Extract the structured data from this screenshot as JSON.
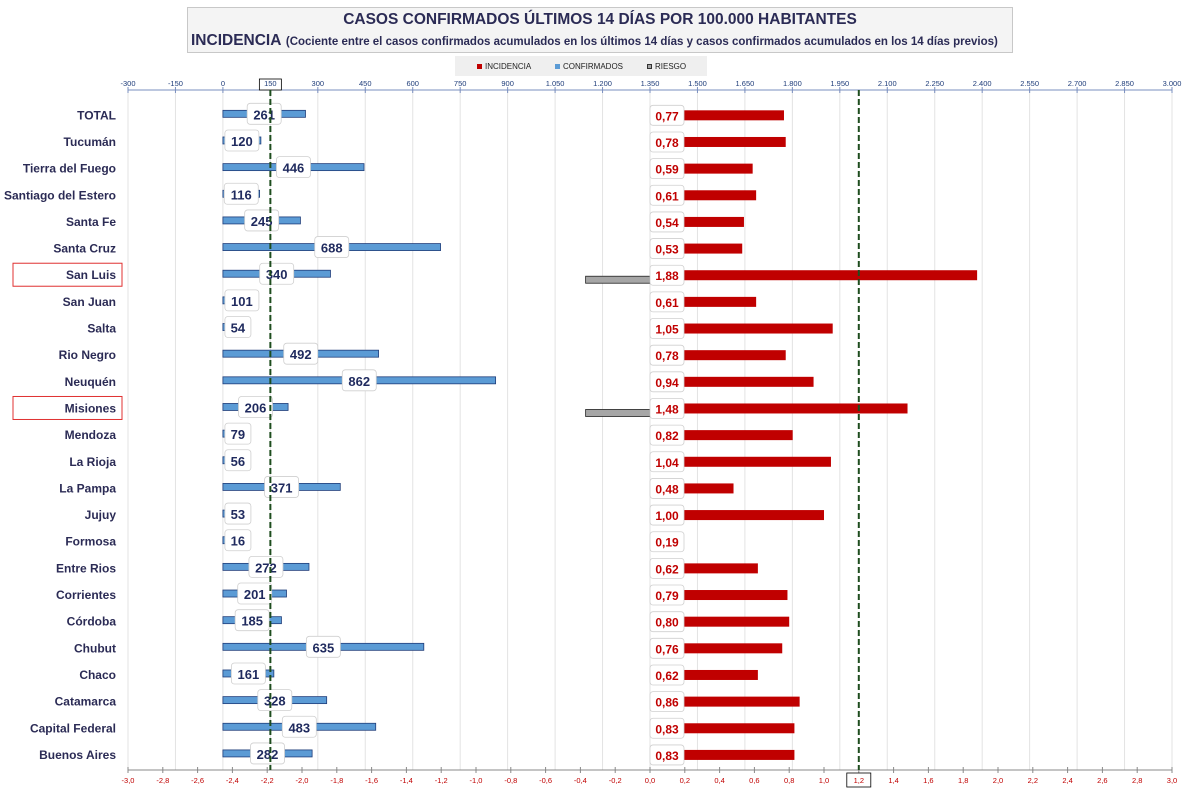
{
  "title": "CASOS CONFIRMADOS ÚLTIMOS 14 DÍAS POR 100.000 HABITANTES",
  "subtitle_main": "INCIDENCIA",
  "subtitle_note": "(Cociente entre el casos confirmados acumulados en los últimos 14 días y casos confirmados acumulados en los 14 días previos)",
  "legend": {
    "incidencia": "INCIDENCIA",
    "confirmados": "CONFIRMADOS",
    "riesgo": "RIESGO"
  },
  "colors": {
    "incidencia": "#c00000",
    "confirmados": "#5b9bd5",
    "riesgo": "#a6a6a6",
    "threshold": "#1e4d1e"
  },
  "chart_data": {
    "type": "bar",
    "orientation": "horizontal",
    "categories": [
      "TOTAL",
      "Tucumán",
      "Tierra del Fuego",
      "Santiago del Estero",
      "Santa Fe",
      "Santa Cruz",
      "San Luis",
      "San Juan",
      "Salta",
      "Rio Negro",
      "Neuquén",
      "Misiones",
      "Mendoza",
      "La Rioja",
      "La Pampa",
      "Jujuy",
      "Formosa",
      "Entre Rios",
      "Corrientes",
      "Córdoba",
      "Chubut",
      "Chaco",
      "Catamarca",
      "Capital Federal",
      "Buenos Aires"
    ],
    "highlighted": [
      "San Luis",
      "Misiones"
    ],
    "series": [
      {
        "name": "CONFIRMADOS",
        "axis": "top",
        "values": [
          261,
          120,
          446,
          116,
          245,
          688,
          340,
          101,
          54,
          492,
          862,
          206,
          79,
          56,
          371,
          53,
          16,
          272,
          201,
          185,
          635,
          161,
          328,
          483,
          282
        ]
      },
      {
        "name": "INCIDENCIA",
        "axis": "bottom",
        "values": [
          0.77,
          0.78,
          0.59,
          0.61,
          0.54,
          0.53,
          1.88,
          0.61,
          1.05,
          0.78,
          0.94,
          1.48,
          0.82,
          1.04,
          0.48,
          1.0,
          0.19,
          0.62,
          0.79,
          0.8,
          0.76,
          0.62,
          0.86,
          0.83,
          0.83
        ]
      },
      {
        "name": "RIESGO",
        "axis": "bottom",
        "values": [
          0,
          0,
          0,
          0,
          0,
          0,
          -0.37,
          0,
          0,
          0,
          0,
          -0.37,
          0,
          0,
          0,
          0,
          0,
          0,
          0,
          0,
          0,
          0,
          0,
          0,
          0
        ]
      }
    ],
    "incidencia_labels": [
      "0,77",
      "0,78",
      "0,59",
      "0,61",
      "0,54",
      "0,53",
      "1,88",
      "0,61",
      "1,05",
      "0,78",
      "0,94",
      "1,48",
      "0,82",
      "1,04",
      "0,48",
      "1,00",
      "0,19",
      "0,62",
      "0,79",
      "0,80",
      "0,76",
      "0,62",
      "0,86",
      "0,83",
      "0,83"
    ],
    "top_axis": {
      "min": -300,
      "max": 3000,
      "ticks": [
        -300,
        -150,
        0,
        150,
        300,
        450,
        600,
        750,
        900,
        1050,
        1200,
        1350,
        1500,
        1650,
        1800,
        1950,
        2100,
        2250,
        2400,
        2550,
        2700,
        2850,
        3000
      ],
      "tick_labels": [
        "-300",
        "-150",
        "0",
        "150",
        "300",
        "450",
        "600",
        "750",
        "900",
        "1.050",
        "1.200",
        "1.350",
        "1.500",
        "1.650",
        "1.800",
        "1.950",
        "2.100",
        "2.250",
        "2.400",
        "2.550",
        "2.700",
        "2.850",
        "3.000"
      ],
      "highlight_tick": "150"
    },
    "bottom_axis": {
      "min": -3.0,
      "max": 3.0,
      "ticks": [
        -3.0,
        -2.8,
        -2.6,
        -2.4,
        -2.2,
        -2.0,
        -1.8,
        -1.6,
        -1.4,
        -1.2,
        -1.0,
        -0.8,
        -0.6,
        -0.4,
        -0.2,
        0.0,
        0.2,
        0.4,
        0.6,
        0.8,
        1.0,
        1.2,
        1.4,
        1.6,
        1.8,
        2.0,
        2.2,
        2.4,
        2.6,
        2.8,
        3.0
      ],
      "tick_labels": [
        "-3,0",
        "-2,8",
        "-2,6",
        "-2,4",
        "-2,2",
        "-2,0",
        "-1,8",
        "-1,6",
        "-1,4",
        "-1,2",
        "-1,0",
        "-0,8",
        "-0,6",
        "-0,4",
        "-0,2",
        "0,0",
        "0,2",
        "0,4",
        "0,6",
        "0,8",
        "1,0",
        "1,2",
        "1,4",
        "1,6",
        "1,8",
        "2,0",
        "2,2",
        "2,4",
        "2,6",
        "2,8",
        "3,0"
      ],
      "highlight_tick": "1,2"
    },
    "threshold_confirmados": 150,
    "threshold_incidencia": 1.2
  }
}
